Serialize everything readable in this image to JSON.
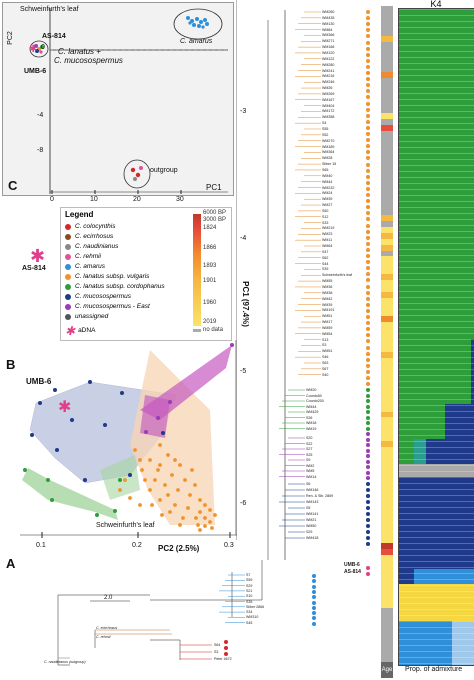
{
  "panels": {
    "A": "A",
    "B": "B",
    "C": "C"
  },
  "pca_c": {
    "axis_x": "PC1",
    "axis_y": "PC2",
    "x_ticks": [
      "0",
      "10",
      "20",
      "30"
    ],
    "y_ticks": [
      "0",
      "-4",
      "-8"
    ],
    "labels": {
      "schweinfurth": "Schweinfurth's leaf",
      "as814": "AS-814",
      "lanatus": "C. lanatus +",
      "mucosospermus": "C. mucosospermus",
      "umb6": "UMB-6",
      "amarus": "C. amarus",
      "outgroup": "outgroup"
    }
  },
  "legend": {
    "title": "Legend",
    "items": [
      {
        "label": "C. colocynthis",
        "color": "#d62728"
      },
      {
        "label": "C. ecirrhosus",
        "color": "#8c4a1e"
      },
      {
        "label": "C. naudinianus",
        "color": "#888888"
      },
      {
        "label": "C. rehmii",
        "color": "#e0529c"
      },
      {
        "label": "C. amarus",
        "color": "#2f8fd8"
      },
      {
        "label": "C. lanatus subsp. vulgaris",
        "color": "#f0932b"
      },
      {
        "label": "C. lanatus subsp. cordophanus",
        "color": "#2e9e3a"
      },
      {
        "label": "C. mucosospermus",
        "color": "#1f3a8a"
      },
      {
        "label": "C. mucosospermus - East",
        "color": "#9b3bb5"
      },
      {
        "label": "unassigned",
        "color": "#555555"
      }
    ],
    "adna_label": "aDNA",
    "colorbar": {
      "top": "6000 BP",
      "top2": "3000 BP",
      "ticks": [
        "1824",
        "1866",
        "1893",
        "1901",
        "1960",
        "2019"
      ],
      "nodata": "no data"
    }
  },
  "pca_b": {
    "axis_x": "PC2 (2.5%)",
    "axis_y": "PC1 (97.4%)",
    "x_ticks": [
      "0.1",
      "0.2",
      "0.3"
    ],
    "y_ticks": [
      "-3",
      "-4",
      "-5",
      "-6"
    ],
    "labels": {
      "umb6": "UMB-6",
      "as814": "AS-814",
      "schweinfurth": "Schweinfurth's leaf"
    }
  },
  "tree": {
    "scale": "2.0",
    "tips_vulgaris": [
      "WM260",
      "WM435",
      "WM130",
      "WM84",
      "WM366",
      "WM271",
      "WM168",
      "WM120",
      "WM122",
      "WM280",
      "WM241",
      "WM216",
      "WM246",
      "WM26",
      "WM269",
      "WM167",
      "WM404",
      "WM172",
      "WM358",
      "S4",
      "S55",
      "S52",
      "WM270",
      "WM189",
      "WM364",
      "WM28",
      "Silber 15",
      "S65",
      "WM40",
      "WM44",
      "WM232",
      "WM24",
      "WM39",
      "WM27",
      "S50",
      "S12",
      "S33",
      "WM219",
      "WM23",
      "WM11",
      "WM64",
      "S47",
      "S62",
      "S44",
      "S39",
      "Schweinfurth's leaf",
      "WM55",
      "WM36",
      "WM38",
      "WM42",
      "WM39",
      "WM191",
      "WM51",
      "WM17",
      "WM59",
      "WM54",
      "S13",
      "S3",
      "WM51",
      "S46",
      "S63",
      "S67",
      "S40"
    ],
    "tips_cordo": [
      "WM20",
      "Coordo50",
      "Coordo200",
      "WM44",
      "WM429",
      "S26",
      "WM18",
      "WM19"
    ],
    "tips_east": [
      "S20",
      "S22",
      "S27",
      "S25",
      "S9",
      "WM2",
      "WM5",
      "WM14"
    ],
    "tips_muco": [
      "S6",
      "WM146",
      "Ren. & Slb. 2869",
      "WM143",
      "S5",
      "WM141",
      "WM21",
      "WM50",
      "S29",
      "WM418"
    ],
    "special": {
      "umb6": "UMB-6",
      "as814": "AS-814"
    },
    "tips_amarus": [
      "S7",
      "S59",
      "S29",
      "S21",
      "S10",
      "S35",
      "Silber 2866",
      "S34",
      "WM310",
      "S45"
    ],
    "tips_outgroup": [
      "C. ecirrhosus",
      "C. rehmii",
      "C. naudinianus (outgroup)",
      "S64",
      "S3",
      "Peter 4672"
    ]
  },
  "admixture": {
    "title": "K4",
    "xlabel": "Prop. of admixture",
    "age_label": "Age",
    "colors": {
      "green": "#2e9e3a",
      "navy": "#1f3a8a",
      "teal": "#2a9d8f",
      "yellow": "#f5d742",
      "blue": "#2f8fd8",
      "light": "#9fc8ea",
      "grey": "#aaaaaa"
    }
  }
}
